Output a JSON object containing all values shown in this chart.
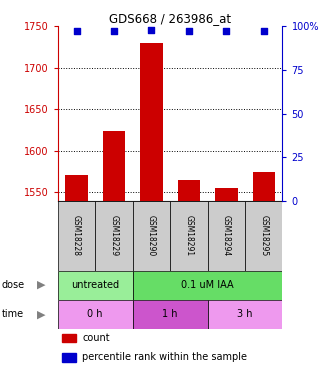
{
  "title": "GDS668 / 263986_at",
  "samples": [
    "GSM18228",
    "GSM18229",
    "GSM18290",
    "GSM18291",
    "GSM18294",
    "GSM18295"
  ],
  "counts": [
    1571,
    1624,
    1730,
    1565,
    1555,
    1575
  ],
  "percentiles": [
    97,
    97,
    98,
    97,
    97,
    97
  ],
  "ylim_left": [
    1540,
    1750
  ],
  "ylim_right": [
    0,
    100
  ],
  "yticks_left": [
    1550,
    1600,
    1650,
    1700,
    1750
  ],
  "yticks_right": [
    0,
    25,
    50,
    75,
    100
  ],
  "bar_color": "#cc0000",
  "dot_color": "#0000cc",
  "xlabel_color": "#cc0000",
  "right_axis_color": "#0000cc",
  "grid_color": "#000000",
  "sample_bg_color": "#cccccc",
  "dose_untreated_color": "#99ff99",
  "dose_treated_color": "#66dd66",
  "time_0h_color": "#ee99ee",
  "time_1h_color": "#cc55cc",
  "time_3h_color": "#ee99ee",
  "dose_specs": [
    {
      "start": 0,
      "end": 2,
      "color": "#99ee99",
      "label": "untreated"
    },
    {
      "start": 2,
      "end": 6,
      "color": "#66dd66",
      "label": "0.1 uM IAA"
    }
  ],
  "time_specs": [
    {
      "start": 0,
      "end": 2,
      "color": "#ee99ee",
      "label": "0 h"
    },
    {
      "start": 2,
      "end": 4,
      "color": "#cc55cc",
      "label": "1 h"
    },
    {
      "start": 4,
      "end": 6,
      "color": "#ee99ee",
      "label": "3 h"
    }
  ]
}
